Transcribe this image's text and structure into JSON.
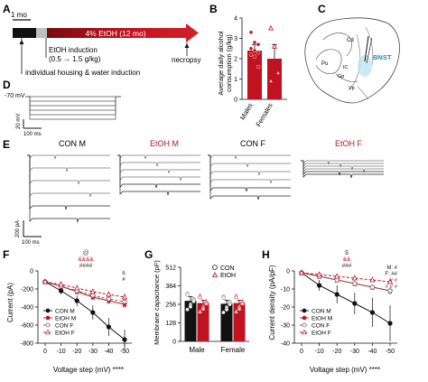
{
  "panels": {
    "A": {
      "label": "A",
      "scale_bar": "1 mo",
      "bar_text": "4% EtOH (12 mo)",
      "induction_lines": [
        "EtOH induction",
        "(0.5 → 1.5 g/kg)"
      ],
      "housing_text": "individual housing & water induction",
      "necropsy_text": "necropsy"
    },
    "B": {
      "label": "B",
      "ylabel_lines": [
        "Average daily alcohol",
        "consumption (g/kg)"
      ],
      "yticks": [
        "0",
        "1",
        "2",
        "3",
        "4"
      ],
      "groups": [
        "Males",
        "Females"
      ],
      "colors": {
        "bar": "#c1121f",
        "points": "#c1121f"
      }
    },
    "C": {
      "label": "C",
      "region_labels": [
        "Cd",
        "Pu",
        "Gp",
        "IC",
        "Vp",
        "BNST"
      ]
    },
    "D": {
      "label": "D",
      "voltage_text": "-70 mV",
      "scale_v": "20 mV",
      "scale_t": "100 ms"
    },
    "E": {
      "label": "E",
      "group_titles": [
        "CON M",
        "EtOH M",
        "CON F",
        "EtOH F"
      ],
      "title_colors": [
        "#111111",
        "#c1121f",
        "#111111",
        "#c1121f"
      ],
      "scale_i": "200 pA",
      "scale_t": "100 ms"
    },
    "F": {
      "label": "F",
      "ylabel": "Current (pA)",
      "xlabel": "Voltage step (mV) ****",
      "yticks": [
        "0",
        "-200",
        "-400",
        "-600",
        "-800"
      ],
      "xticks": [
        "0",
        "-10",
        "-20",
        "-30",
        "-40",
        "-50"
      ],
      "sig_marks": [
        "@",
        "&&&&",
        "####"
      ],
      "side_marks": [
        "&",
        "#"
      ],
      "legend": [
        "CON M",
        "EtOH M",
        "CON F",
        "EtOH F"
      ]
    },
    "G": {
      "label": "G",
      "ylabel": "Membrane capacitance (pF)",
      "yticks": [
        "0",
        "128",
        "256",
        "384",
        "512"
      ],
      "groups": [
        "Male",
        "Female"
      ],
      "legend": [
        "CON",
        "EtOH"
      ]
    },
    "H": {
      "label": "H",
      "ylabel": "Current density (pA/pF)",
      "xlabel": "Voltage step (mV) ****",
      "yticks": [
        "0",
        "-10",
        "-20",
        "-30",
        "-40"
      ],
      "xticks": [
        "0",
        "-10",
        "-20",
        "-30",
        "-40",
        "-50"
      ],
      "sig_marks": [
        "$",
        "&&",
        "###"
      ],
      "side_marks": [
        "M: #",
        "F: ##",
        "#   #",
        "# # #"
      ],
      "legend": [
        "CON M",
        "EtOH M",
        "CON F",
        "EtOH F"
      ]
    }
  },
  "colors": {
    "red": "#c1121f",
    "black": "#111111",
    "gray_bar": "#bfbfbf"
  },
  "chart_data": [
    {
      "panel": "B",
      "type": "bar",
      "categories": [
        "Males",
        "Females"
      ],
      "values": [
        2.4,
        2.0
      ],
      "errors": [
        0.3,
        0.7
      ],
      "ylim": [
        0,
        4
      ],
      "ylabel": "Average daily alcohol consumption (g/kg)",
      "points": [
        [
          3.3,
          2.8,
          2.7,
          2.5,
          2.4,
          2.3,
          2.2,
          2.1,
          1.6
        ],
        [
          3.5,
          2.6,
          1.3,
          0.9
        ]
      ]
    },
    {
      "panel": "F",
      "type": "line",
      "x": [
        0,
        -10,
        -20,
        -30,
        -40,
        -50
      ],
      "xlabel": "Voltage step (mV)",
      "ylabel": "Current (pA)",
      "ylim": [
        -800,
        0
      ],
      "series": [
        {
          "name": "CON M",
          "values": [
            -120,
            -220,
            -330,
            -460,
            -620,
            -760
          ],
          "errors": [
            20,
            40,
            60,
            80,
            100,
            110
          ]
        },
        {
          "name": "EtOH M",
          "values": [
            -120,
            -170,
            -230,
            -290,
            -330,
            -370
          ],
          "errors": [
            15,
            20,
            25,
            30,
            35,
            40
          ]
        },
        {
          "name": "CON F",
          "values": [
            -120,
            -170,
            -220,
            -270,
            -310,
            -340
          ],
          "errors": [
            15,
            20,
            25,
            30,
            35,
            40
          ]
        },
        {
          "name": "EtOH F",
          "values": [
            -120,
            -150,
            -190,
            -230,
            -260,
            -290
          ],
          "errors": [
            15,
            20,
            25,
            30,
            35,
            40
          ]
        }
      ]
    },
    {
      "panel": "G",
      "type": "bar",
      "categories": [
        "Male",
        "Female"
      ],
      "series": [
        {
          "name": "CON",
          "values": [
            280,
            260
          ],
          "errors": [
            30,
            25
          ]
        },
        {
          "name": "EtOH",
          "values": [
            265,
            265
          ],
          "errors": [
            20,
            20
          ]
        }
      ],
      "ylim": [
        0,
        512
      ],
      "ylabel": "Membrane capacitance (pF)"
    },
    {
      "panel": "H",
      "type": "line",
      "x": [
        0,
        -10,
        -20,
        -30,
        -40,
        -50
      ],
      "xlabel": "Voltage step (mV)",
      "ylabel": "Current density (pA/pF)",
      "ylim": [
        -40,
        0
      ],
      "series": [
        {
          "name": "CON M",
          "values": [
            -1,
            -8,
            -13,
            -18,
            -23,
            -29
          ],
          "errors": [
            1,
            3,
            5,
            6,
            8,
            10
          ]
        },
        {
          "name": "EtOH M",
          "values": [
            -1,
            -3,
            -5,
            -7,
            -9,
            -11
          ],
          "errors": [
            0.5,
            1,
            1,
            1.5,
            1.5,
            2
          ]
        },
        {
          "name": "CON F",
          "values": [
            -1,
            -3,
            -5,
            -7,
            -9,
            -11
          ],
          "errors": [
            0.5,
            1,
            1,
            1.5,
            1.5,
            2
          ]
        },
        {
          "name": "EtOH F",
          "values": [
            -1,
            -2,
            -3,
            -4,
            -5,
            -6
          ],
          "errors": [
            0.5,
            1,
            1,
            1,
            1,
            1
          ]
        }
      ]
    }
  ]
}
